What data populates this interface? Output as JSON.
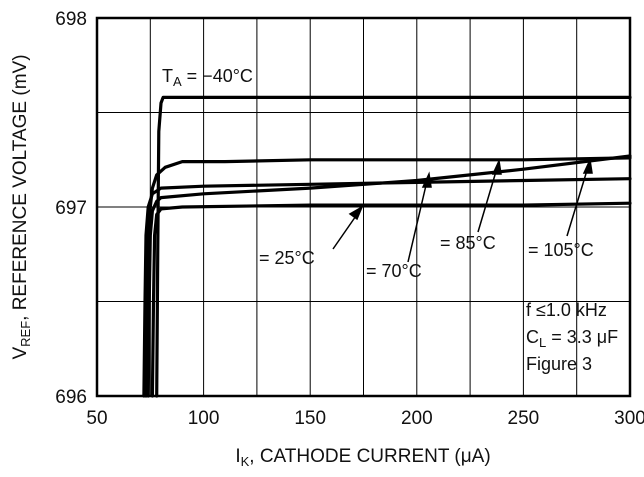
{
  "chart_data": {
    "type": "line",
    "xlabel": {
      "main": "I",
      "sub": "K",
      "rest": ", CATHODE CURRENT (μA)"
    },
    "ylabel": {
      "main": "V",
      "sub": "REF",
      "rest": ", REFERENCE VOLTAGE (mV)"
    },
    "xlim": [
      50,
      300
    ],
    "ylim": [
      696,
      698
    ],
    "xticks": [
      "50",
      "100",
      "150",
      "200",
      "250",
      "300"
    ],
    "yticks": [
      "696",
      "697",
      "698"
    ],
    "grid": true,
    "series": [
      {
        "name": "−40°C",
        "x": [
          78,
          78.5,
          79,
          80,
          81,
          90,
          150,
          200,
          250,
          300
        ],
        "y": [
          696,
          696.8,
          697.4,
          697.55,
          697.58,
          697.58,
          697.58,
          697.58,
          697.58,
          697.58
        ]
      },
      {
        "name": "25°C",
        "x": [
          73,
          73.5,
          74,
          75,
          76,
          78,
          82,
          90,
          100,
          110,
          150,
          200,
          250,
          300
        ],
        "y": [
          696,
          696.5,
          696.85,
          697.0,
          697.1,
          697.17,
          697.21,
          697.24,
          697.24,
          697.24,
          697.25,
          697.25,
          697.25,
          697.26
        ]
      },
      {
        "name": "70°C",
        "x": [
          72,
          72.5,
          73,
          74,
          76,
          80,
          100,
          150,
          200,
          250,
          300
        ],
        "y": [
          696,
          696.5,
          696.85,
          697.0,
          697.07,
          697.1,
          697.11,
          697.12,
          697.13,
          697.14,
          697.15
        ]
      },
      {
        "name": "85°C",
        "x": [
          74,
          74.5,
          75,
          76,
          78,
          80,
          100,
          150,
          200,
          250,
          300
        ],
        "y": [
          696,
          696.5,
          696.85,
          696.98,
          697.03,
          697.05,
          697.07,
          697.1,
          697.14,
          697.2,
          697.27
        ]
      },
      {
        "name": "105°C",
        "x": [
          76,
          76.5,
          77,
          78,
          80,
          90,
          150,
          200,
          250,
          300
        ],
        "y": [
          696,
          696.5,
          696.85,
          696.96,
          696.99,
          697.0,
          697.01,
          697.01,
          697.01,
          697.02
        ]
      }
    ],
    "annotations": {
      "ta": {
        "main": "T",
        "sub": "A",
        "rest": " = −40°C"
      },
      "t25": "= 25°C",
      "t70": "= 70°C",
      "t85": "= 85°C",
      "t105": "= 105°C",
      "freq": "f ≤1.0 kHz",
      "cl": {
        "main": "C",
        "sub": "L",
        "rest": " = 3.3 μF"
      },
      "fig": "Figure 3"
    }
  }
}
